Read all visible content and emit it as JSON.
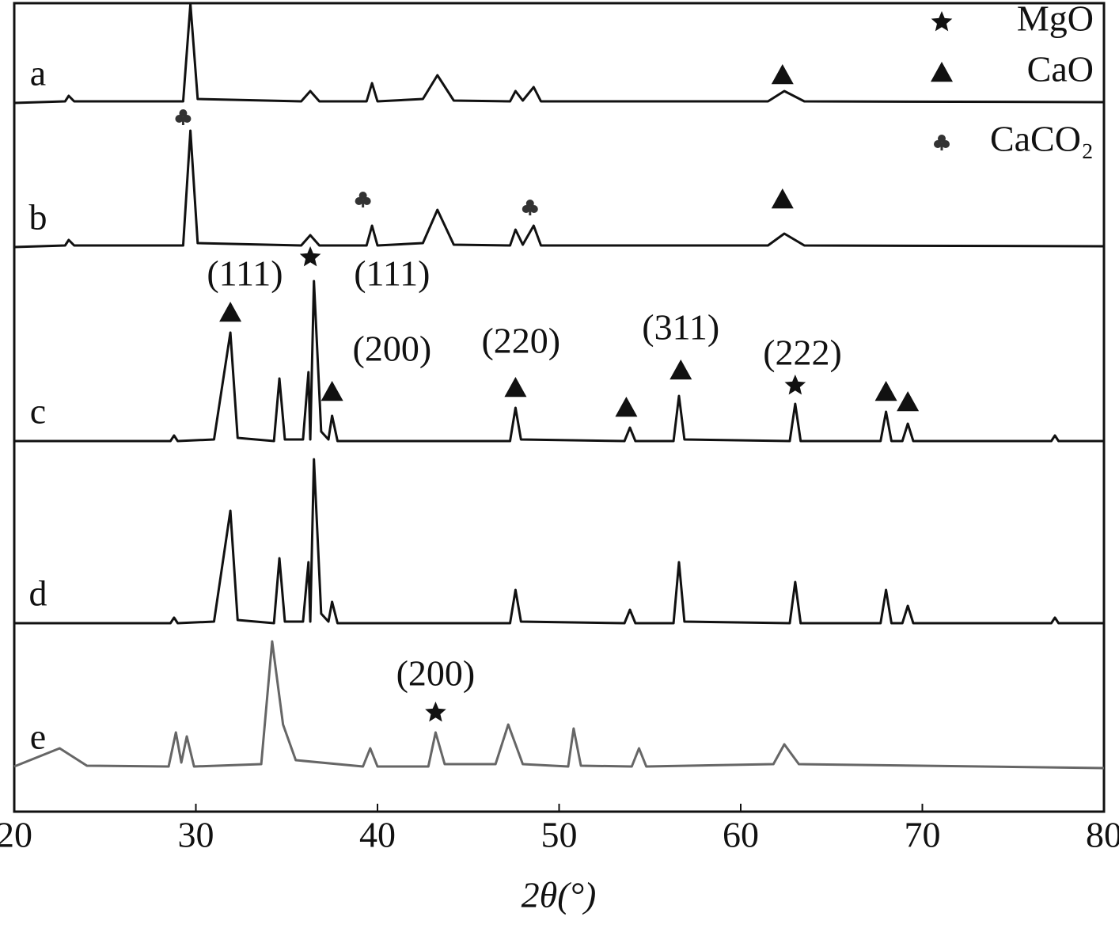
{
  "chart_data": {
    "type": "line",
    "xlabel": "2θ(°)",
    "xlim": [
      20,
      80
    ],
    "xticks": [
      20,
      30,
      40,
      50,
      60,
      70,
      80
    ],
    "ylim": [
      0,
      1025
    ],
    "legend": "upper right",
    "legend_entries": [
      {
        "symbol": "star",
        "label": "MgO"
      },
      {
        "symbol": "triangle",
        "label": "CaO"
      },
      {
        "symbol": "club",
        "label": "CaCO₂"
      }
    ],
    "series": [
      {
        "name": "a",
        "color": "#111111",
        "x": [
          20,
          22.8,
          23,
          23.3,
          29.3,
          29.7,
          30.1,
          35.8,
          36.3,
          36.8,
          39.4,
          39.7,
          40.0,
          42.5,
          43.3,
          44.2,
          47.3,
          47.6,
          48.0,
          48.6,
          49.0,
          61.5,
          62.4,
          63.5,
          80
        ],
        "values": [
          895,
          897,
          904,
          897,
          897,
          1020,
          900,
          897,
          910,
          897,
          897,
          920,
          897,
          900,
          930,
          898,
          897,
          910,
          898,
          915,
          897,
          897,
          910,
          897,
          896
        ]
      },
      {
        "name": "b",
        "color": "#111111",
        "x": [
          20,
          22.8,
          23,
          23.3,
          29.3,
          29.7,
          30.1,
          35.8,
          36.3,
          36.8,
          39.4,
          39.7,
          40.0,
          42.5,
          43.3,
          44.2,
          47.3,
          47.6,
          48.0,
          48.6,
          49.0,
          61.5,
          62.4,
          63.5,
          80
        ],
        "values": [
          713,
          715,
          722,
          715,
          715,
          860,
          718,
          715,
          728,
          715,
          715,
          740,
          715,
          718,
          760,
          716,
          715,
          735,
          716,
          740,
          715,
          715,
          730,
          715,
          714
        ]
      },
      {
        "name": "c",
        "color": "#111111",
        "x": [
          20,
          28.6,
          28.8,
          29.0,
          31.0,
          31.9,
          32.3,
          34.3,
          34.6,
          34.9,
          35.9,
          36.2,
          36.3,
          36.5,
          36.9,
          37.3,
          37.5,
          37.8,
          47.3,
          47.6,
          47.9,
          53.6,
          53.9,
          54.2,
          56.3,
          56.6,
          56.9,
          62.7,
          63.0,
          63.3,
          67.7,
          68.0,
          68.3,
          68.9,
          69.2,
          69.5,
          77.1,
          77.3,
          77.5,
          80
        ],
        "values": [
          468,
          468,
          475,
          468,
          470,
          605,
          472,
          468,
          547,
          470,
          470,
          555,
          470,
          670,
          480,
          470,
          500,
          468,
          468,
          510,
          470,
          468,
          485,
          468,
          468,
          525,
          470,
          468,
          515,
          468,
          468,
          505,
          468,
          468,
          490,
          468,
          468,
          475,
          468,
          468
        ]
      },
      {
        "name": "d",
        "color": "#111111",
        "x": [
          20,
          28.6,
          28.8,
          29.0,
          31.0,
          31.9,
          32.3,
          34.3,
          34.6,
          34.9,
          35.9,
          36.2,
          36.3,
          36.5,
          36.9,
          37.3,
          37.5,
          37.8,
          47.3,
          47.6,
          47.9,
          53.6,
          53.9,
          54.2,
          56.3,
          56.6,
          56.9,
          62.7,
          63.0,
          63.3,
          67.7,
          68.0,
          68.3,
          68.9,
          69.2,
          69.5,
          77.1,
          77.3,
          77.5,
          80
        ],
        "values": [
          238,
          238,
          245,
          238,
          240,
          380,
          242,
          238,
          320,
          240,
          240,
          315,
          240,
          445,
          250,
          240,
          265,
          238,
          238,
          280,
          240,
          238,
          255,
          238,
          238,
          315,
          240,
          238,
          290,
          238,
          238,
          280,
          238,
          238,
          260,
          238,
          238,
          245,
          238,
          238
        ]
      },
      {
        "name": "e",
        "color": "#666666",
        "x": [
          20,
          22.5,
          24,
          28.5,
          28.9,
          29.2,
          29.5,
          29.9,
          33.6,
          34.2,
          34.8,
          35.5,
          39.2,
          39.6,
          40,
          42.8,
          43.2,
          43.7,
          46.5,
          47.2,
          48,
          50.5,
          50.8,
          51.2,
          54,
          54.4,
          54.8,
          61.8,
          62.4,
          63.2,
          80
        ],
        "values": [
          57,
          80,
          58,
          57,
          100,
          62,
          95,
          57,
          60,
          215,
          110,
          65,
          57,
          80,
          57,
          57,
          100,
          60,
          60,
          110,
          60,
          57,
          105,
          58,
          57,
          80,
          57,
          60,
          85,
          60,
          55
        ]
      }
    ],
    "markers": [
      {
        "symbol": "triangle",
        "x": 62.3,
        "y": 930
      },
      {
        "symbol": "club",
        "x": 29.3,
        "y": 877
      },
      {
        "symbol": "club",
        "x": 39.2,
        "y": 773
      },
      {
        "symbol": "club",
        "x": 48.4,
        "y": 763
      },
      {
        "symbol": "triangle",
        "x": 62.3,
        "y": 773
      },
      {
        "symbol": "star",
        "x": 36.3,
        "y": 700
      },
      {
        "symbol": "triangle",
        "x": 31.9,
        "y": 630
      },
      {
        "symbol": "triangle",
        "x": 37.5,
        "y": 530
      },
      {
        "symbol": "triangle",
        "x": 47.6,
        "y": 535
      },
      {
        "symbol": "triangle",
        "x": 53.7,
        "y": 510
      },
      {
        "symbol": "triangle",
        "x": 56.7,
        "y": 557
      },
      {
        "symbol": "star",
        "x": 63.0,
        "y": 538
      },
      {
        "symbol": "triangle",
        "x": 68.0,
        "y": 530
      },
      {
        "symbol": "triangle",
        "x": 69.2,
        "y": 517
      },
      {
        "symbol": "star",
        "x": 43.2,
        "y": 125
      }
    ],
    "annotations": [
      {
        "text": "(111)",
        "x": 32.7,
        "y": 675
      },
      {
        "text": "(111)",
        "x": 40.8,
        "y": 675
      },
      {
        "text": "(200)",
        "x": 40.8,
        "y": 580
      },
      {
        "text": "(220)",
        "x": 47.9,
        "y": 590
      },
      {
        "text": "(311)",
        "x": 56.7,
        "y": 607
      },
      {
        "text": "(222)",
        "x": 63.4,
        "y": 575
      },
      {
        "text": "(200)",
        "x": 43.2,
        "y": 170
      }
    ]
  }
}
